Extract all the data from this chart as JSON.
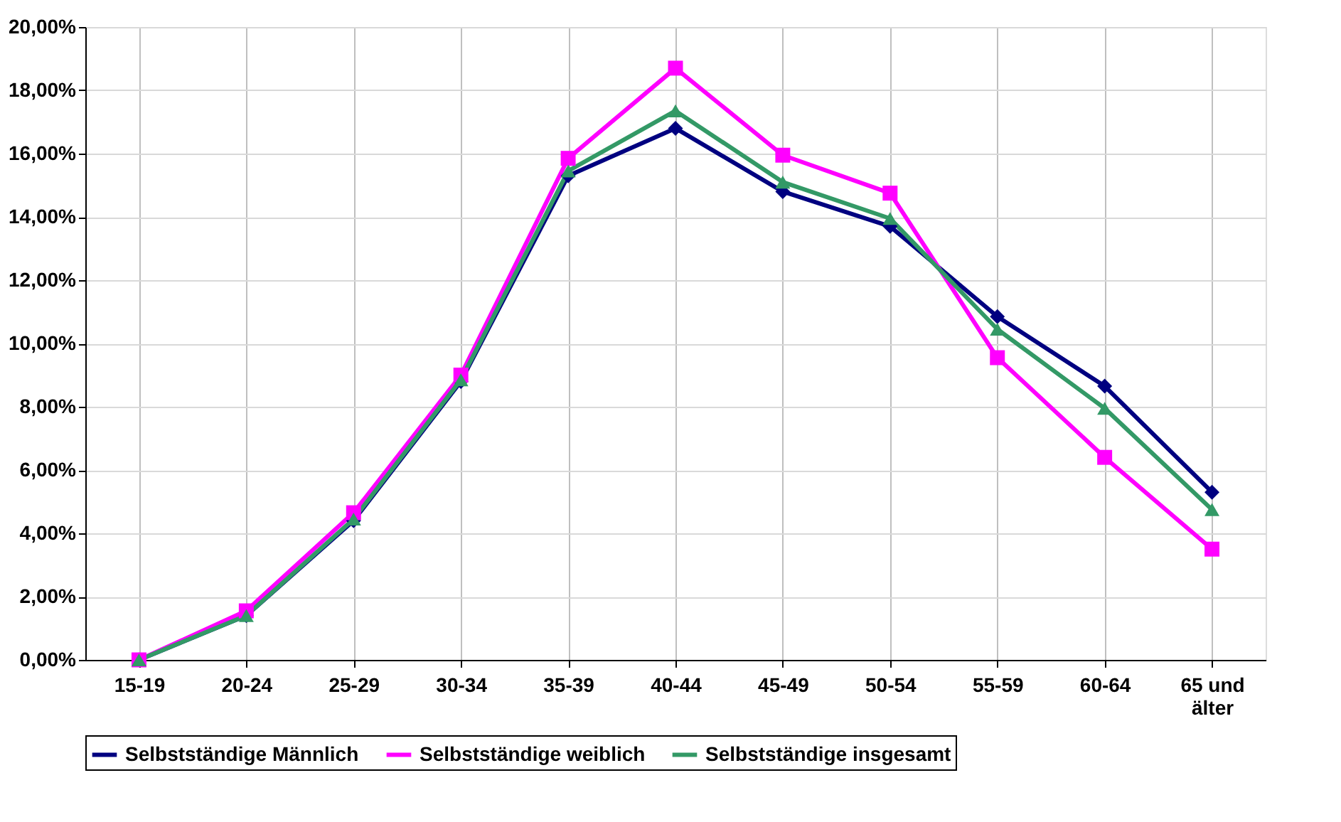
{
  "chart_data": {
    "type": "line",
    "categories": [
      "15-19",
      "20-24",
      "25-29",
      "30-34",
      "35-39",
      "40-44",
      "45-49",
      "50-54",
      "55-59",
      "60-64",
      "65 und älter"
    ],
    "series": [
      {
        "name": "Selbstständige Männlich",
        "color": "#000080",
        "marker": "diamond",
        "values": [
          0,
          1.4,
          4.4,
          8.8,
          15.3,
          16.8,
          14.8,
          13.7,
          10.85,
          8.65,
          5.3
        ]
      },
      {
        "name": "Selbstständige weiblich",
        "color": "#ff00ff",
        "marker": "square",
        "values": [
          0,
          1.55,
          4.65,
          9.0,
          15.85,
          18.7,
          15.95,
          14.75,
          9.55,
          6.4,
          3.5
        ]
      },
      {
        "name": "Selbstständige insgesamt",
        "color": "#339966",
        "marker": "triangle",
        "values": [
          0,
          1.4,
          4.45,
          8.85,
          15.45,
          17.35,
          15.1,
          13.95,
          10.45,
          7.95,
          4.75
        ]
      }
    ],
    "ylim": [
      0,
      20
    ],
    "yticks": [
      {
        "value": 0,
        "label": "0,00%"
      },
      {
        "value": 2,
        "label": "2,00%"
      },
      {
        "value": 4,
        "label": "4,00%"
      },
      {
        "value": 6,
        "label": "6,00%"
      },
      {
        "value": 8,
        "label": "8,00%"
      },
      {
        "value": 10,
        "label": "10,00%"
      },
      {
        "value": 12,
        "label": "12,00%"
      },
      {
        "value": 14,
        "label": "14,00%"
      },
      {
        "value": 16,
        "label": "16,00%"
      },
      {
        "value": 18,
        "label": "18,00%"
      },
      {
        "value": 20,
        "label": "20,00%"
      }
    ],
    "grid": true,
    "legend": "bottom",
    "line_style": "solid"
  }
}
